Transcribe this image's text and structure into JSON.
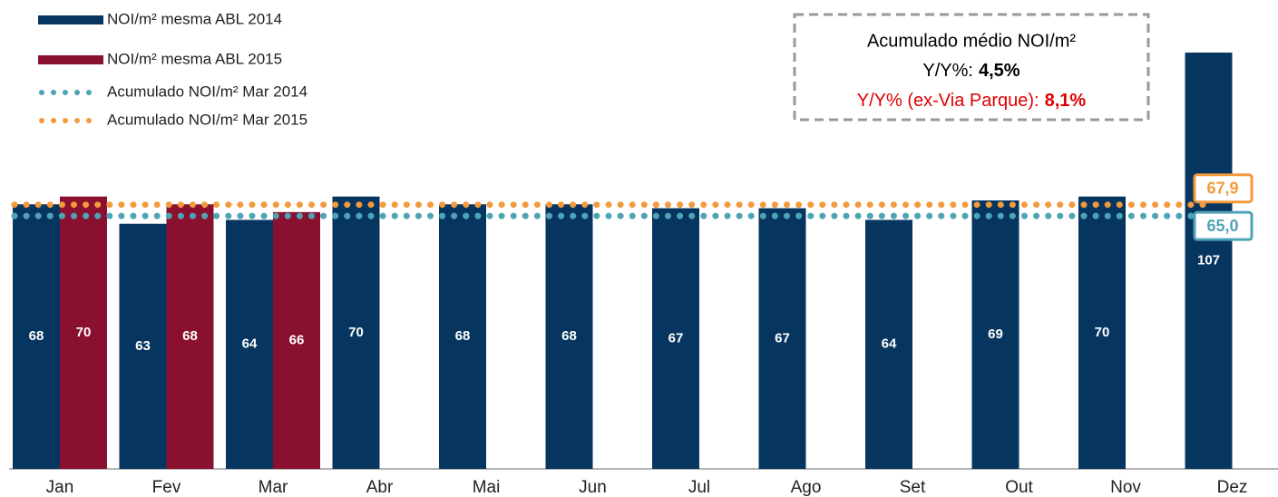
{
  "chart_data": {
    "type": "bar",
    "categories": [
      "Jan",
      "Fev",
      "Mar",
      "Abr",
      "Mai",
      "Jun",
      "Jul",
      "Ago",
      "Set",
      "Out",
      "Nov",
      "Dez"
    ],
    "series": [
      {
        "name": "NOI/m² mesma ABL 2014",
        "color": "#06365f",
        "values": [
          68,
          63,
          64,
          70,
          68,
          68,
          67,
          67,
          64,
          69,
          70,
          107
        ]
      },
      {
        "name": "NOI/m² mesma ABL 2015",
        "color": "#8a1030",
        "values": [
          70,
          68,
          66,
          null,
          null,
          null,
          null,
          null,
          null,
          null,
          null,
          null
        ]
      }
    ],
    "reference_lines": [
      {
        "name": "Acumulado NOI/m² Mar 2014",
        "color": "#4fa3b6",
        "value": 65.0,
        "value_label": "65,0"
      },
      {
        "name": "Acumulado NOI/m² Mar 2015",
        "color": "#f29a3c",
        "value": 67.9,
        "value_label": "67,9"
      }
    ],
    "annotation": {
      "title": "Acumulado médio NOI/m²",
      "line1_label": "Y/Y%:",
      "line1_value": "4,5%",
      "line2_label": "Y/Y% (ex-Via Parque):",
      "line2_value": "8,1%"
    }
  }
}
